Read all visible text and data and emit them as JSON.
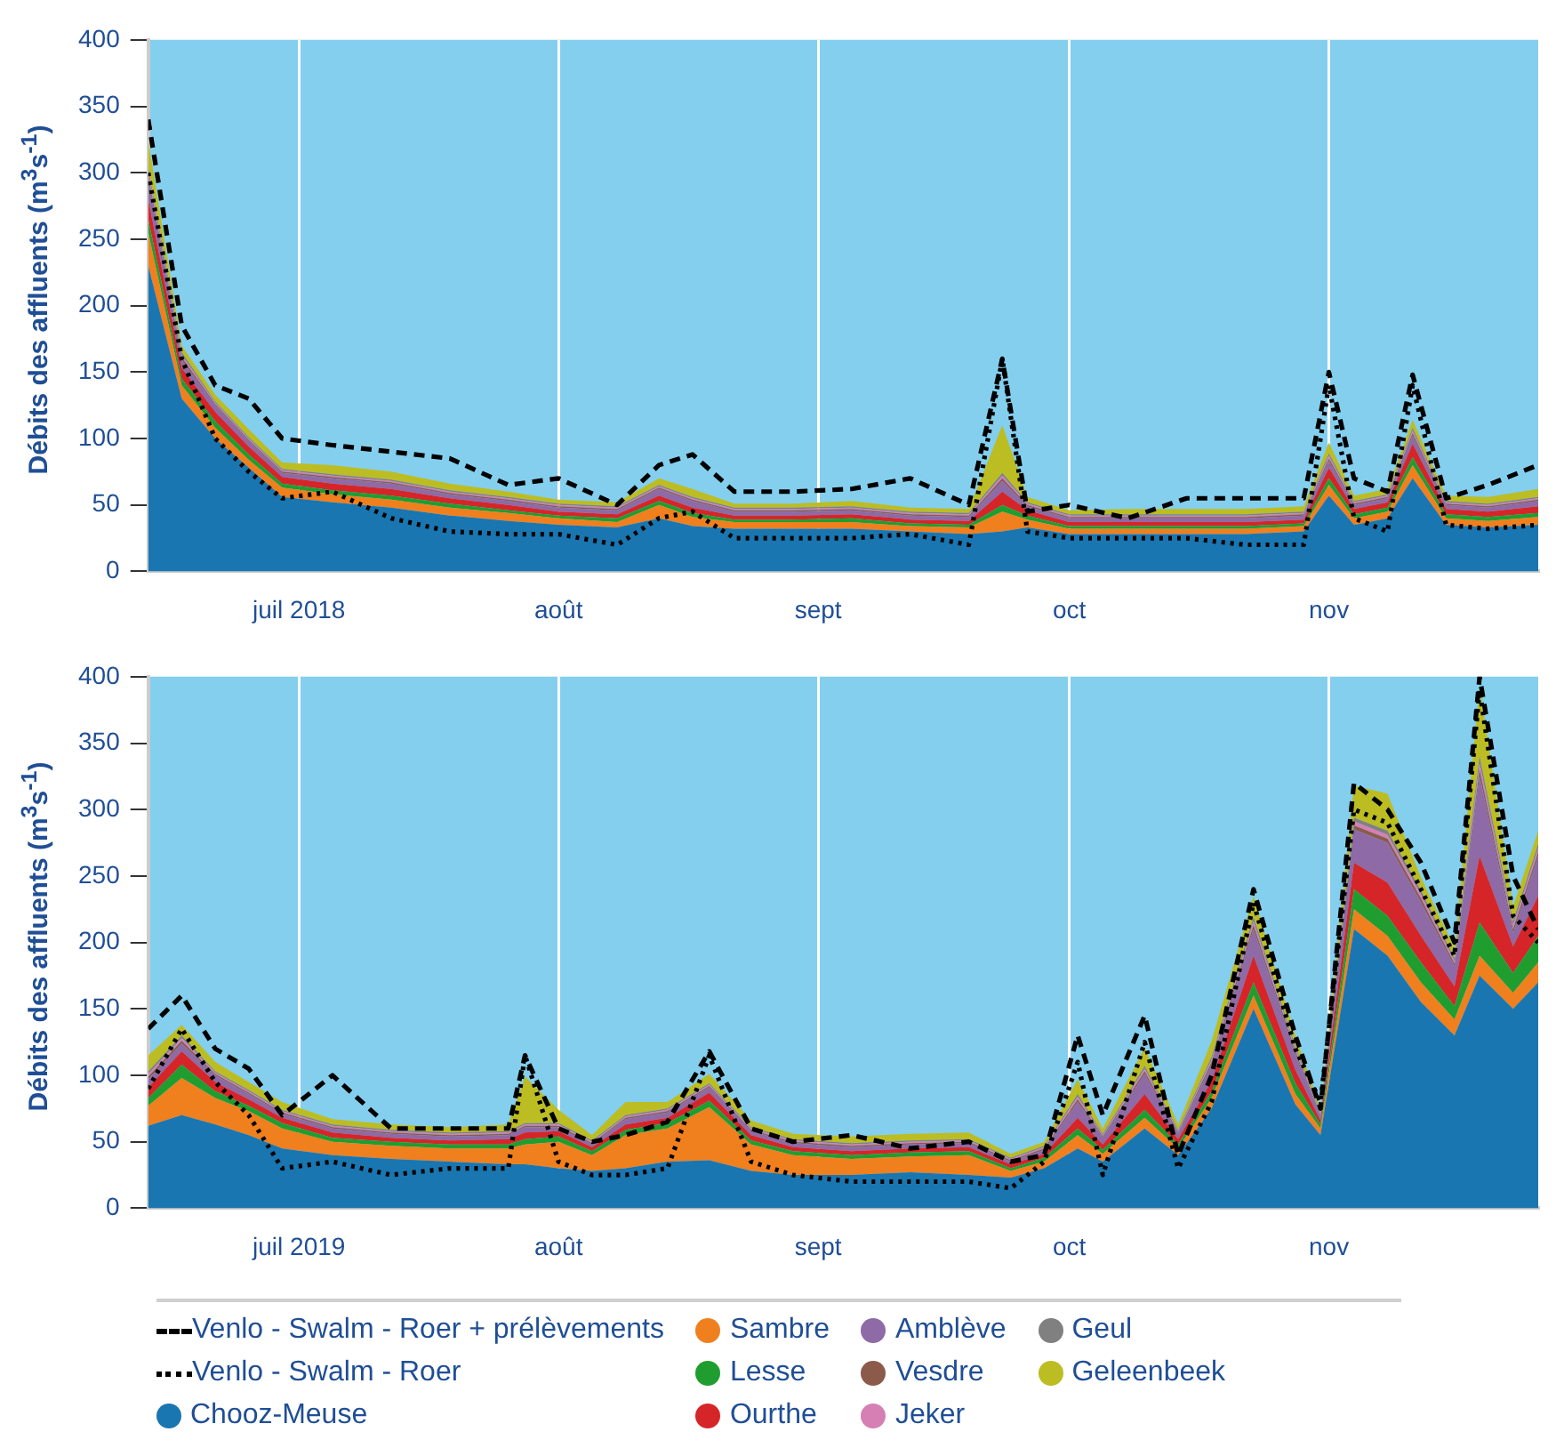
{
  "chart_data": [
    {
      "type": "area",
      "stacked": true,
      "ylabel": "Débits des affluents (m$^{3}$s$^{-1}$)",
      "grid": "x",
      "legend": "bottom",
      "x": [
        "2018-06-13",
        "2018-06-17",
        "2018-06-21",
        "2018-06-25",
        "2018-06-29",
        "2018-07-05",
        "2018-07-12",
        "2018-07-19",
        "2018-07-26",
        "2018-08-01",
        "2018-08-08",
        "2018-08-13",
        "2018-08-17",
        "2018-08-22",
        "2018-08-29",
        "2018-09-05",
        "2018-09-12",
        "2018-09-19",
        "2018-09-23",
        "2018-09-26",
        "2018-10-01",
        "2018-10-08",
        "2018-10-15",
        "2018-10-22",
        "2018-10-29",
        "2018-11-01",
        "2018-11-04",
        "2018-11-08",
        "2018-11-11",
        "2018-11-15",
        "2018-11-20",
        "2018-11-26"
      ],
      "xlim": [
        "2018-06-13",
        "2018-11-26"
      ],
      "xticks": [
        {
          "value": "2018-07-01",
          "label": "juil 2018"
        },
        {
          "value": "2018-08-01",
          "label": "août"
        },
        {
          "value": "2018-09-01",
          "label": "sept"
        },
        {
          "value": "2018-10-01",
          "label": "oct"
        },
        {
          "value": "2018-11-01",
          "label": "nov"
        }
      ],
      "ylim": [
        0,
        400
      ],
      "yticks": [
        0,
        50,
        100,
        150,
        200,
        250,
        300,
        350,
        400
      ],
      "series": [
        {
          "name": "Venlo - Swalm - Roer + prélèvements",
          "type": "line",
          "line_style": "dashed",
          "color": "#000000",
          "values": [
            340,
            185,
            140,
            130,
            100,
            95,
            90,
            85,
            65,
            70,
            50,
            80,
            88,
            60,
            60,
            62,
            70,
            50,
            160,
            45,
            50,
            40,
            55,
            55,
            55,
            150,
            70,
            60,
            148,
            55,
            65,
            80
          ]
        },
        {
          "name": "Venlo - Swalm - Roer",
          "type": "line",
          "line_style": "dotted",
          "color": "#000000",
          "values": [
            300,
            160,
            100,
            75,
            55,
            60,
            40,
            30,
            28,
            28,
            20,
            40,
            45,
            25,
            25,
            25,
            28,
            20,
            160,
            30,
            25,
            25,
            25,
            20,
            20,
            140,
            40,
            30,
            140,
            35,
            32,
            35
          ]
        },
        {
          "name": "Chooz-Meuse",
          "color": "#1a76b0",
          "values": [
            230,
            130,
            100,
            78,
            56,
            52,
            48,
            42,
            38,
            35,
            33,
            40,
            34,
            32,
            32,
            32,
            30,
            28,
            30,
            33,
            28,
            28,
            28,
            28,
            30,
            57,
            35,
            40,
            70,
            35,
            33,
            35
          ]
        },
        {
          "name": "Sambre",
          "color": "#f07f1e",
          "values": [
            25,
            10,
            8,
            6,
            7,
            6,
            6,
            6,
            6,
            5,
            4,
            10,
            7,
            5,
            5,
            5,
            4,
            5,
            15,
            6,
            4,
            4,
            4,
            4,
            4,
            8,
            5,
            5,
            10,
            5,
            5,
            6
          ]
        },
        {
          "name": "Lesse",
          "color": "#1f9e2f",
          "values": [
            10,
            5,
            5,
            4,
            3,
            3,
            3,
            3,
            2,
            2,
            3,
            3,
            3,
            2,
            2,
            3,
            2,
            2,
            5,
            3,
            2,
            2,
            2,
            2,
            2,
            5,
            3,
            3,
            6,
            3,
            3,
            3
          ]
        },
        {
          "name": "Ourthe",
          "color": "#d62528",
          "values": [
            15,
            8,
            7,
            6,
            5,
            5,
            5,
            4,
            4,
            3,
            3,
            4,
            4,
            3,
            3,
            3,
            3,
            3,
            10,
            4,
            3,
            3,
            3,
            3,
            3,
            8,
            4,
            4,
            10,
            4,
            4,
            5
          ]
        },
        {
          "name": "Amblève",
          "color": "#8e6aa6",
          "values": [
            15,
            6,
            5,
            4,
            3,
            4,
            4,
            3,
            3,
            3,
            3,
            5,
            5,
            3,
            3,
            3,
            3,
            3,
            8,
            3,
            3,
            3,
            3,
            3,
            3,
            5,
            3,
            3,
            6,
            3,
            3,
            4
          ]
        },
        {
          "name": "Vesdre",
          "color": "#8b5a4a",
          "values": [
            3,
            2,
            1,
            1,
            1,
            1,
            1,
            1,
            1,
            1,
            1,
            1,
            1,
            1,
            1,
            1,
            1,
            1,
            2,
            1,
            1,
            1,
            1,
            1,
            1,
            2,
            1,
            1,
            2,
            1,
            1,
            1
          ]
        },
        {
          "name": "Jeker",
          "color": "#d67fb4",
          "values": [
            3,
            2,
            1,
            1,
            1,
            1,
            1,
            1,
            1,
            1,
            1,
            1,
            1,
            1,
            1,
            1,
            1,
            1,
            2,
            1,
            1,
            1,
            1,
            1,
            1,
            2,
            1,
            1,
            2,
            1,
            1,
            1
          ]
        },
        {
          "name": "Geul",
          "color": "#808080",
          "values": [
            3,
            2,
            1,
            1,
            1,
            1,
            1,
            1,
            1,
            1,
            1,
            1,
            1,
            1,
            1,
            1,
            1,
            1,
            2,
            1,
            1,
            1,
            1,
            1,
            1,
            2,
            1,
            1,
            2,
            1,
            1,
            1
          ]
        },
        {
          "name": "Geleenbeek",
          "color": "#bcbd22",
          "values": [
            20,
            5,
            5,
            6,
            5,
            7,
            6,
            5,
            4,
            3,
            3,
            5,
            6,
            3,
            3,
            4,
            3,
            3,
            36,
            4,
            3,
            4,
            4,
            4,
            4,
            8,
            4,
            4,
            6,
            4,
            5,
            6
          ]
        }
      ]
    },
    {
      "type": "area",
      "stacked": true,
      "ylabel": "Débits des affluents (m$^{3}$s$^{-1}$)",
      "grid": "x",
      "x": [
        "2019-06-13",
        "2019-06-17",
        "2019-06-21",
        "2019-06-25",
        "2019-06-29",
        "2019-07-05",
        "2019-07-12",
        "2019-07-19",
        "2019-07-26",
        "2019-07-28",
        "2019-08-01",
        "2019-08-05",
        "2019-08-09",
        "2019-08-14",
        "2019-08-19",
        "2019-08-24",
        "2019-08-29",
        "2019-09-05",
        "2019-09-12",
        "2019-09-19",
        "2019-09-24",
        "2019-09-28",
        "2019-10-02",
        "2019-10-05",
        "2019-10-10",
        "2019-10-14",
        "2019-10-18",
        "2019-10-23",
        "2019-10-28",
        "2019-10-31",
        "2019-11-04",
        "2019-11-08",
        "2019-11-12",
        "2019-11-16",
        "2019-11-19",
        "2019-11-23",
        "2019-11-26"
      ],
      "xlim": [
        "2019-06-13",
        "2019-11-26"
      ],
      "xticks": [
        {
          "value": "2019-07-01",
          "label": "juil 2019"
        },
        {
          "value": "2019-08-01",
          "label": "août"
        },
        {
          "value": "2019-09-01",
          "label": "sept"
        },
        {
          "value": "2019-10-01",
          "label": "oct"
        },
        {
          "value": "2019-11-01",
          "label": "nov"
        }
      ],
      "ylim": [
        0,
        400
      ],
      "yticks": [
        0,
        50,
        100,
        150,
        200,
        250,
        300,
        350,
        400
      ],
      "series": [
        {
          "type": "line",
          "line_style": "dashed",
          "color": "#000000",
          "values": [
            135,
            160,
            120,
            105,
            70,
            100,
            60,
            60,
            60,
            115,
            60,
            50,
            55,
            65,
            118,
            60,
            50,
            55,
            45,
            50,
            35,
            40,
            130,
            70,
            145,
            40,
            100,
            240,
            130,
            75,
            320,
            300,
            260,
            200,
            400,
            250,
            210
          ]
        },
        {
          "type": "line",
          "line_style": "dotted",
          "color": "#000000",
          "values": [
            90,
            135,
            95,
            70,
            30,
            35,
            25,
            30,
            30,
            115,
            35,
            25,
            25,
            30,
            115,
            35,
            25,
            20,
            20,
            20,
            15,
            35,
            110,
            25,
            125,
            30,
            80,
            230,
            120,
            80,
            300,
            290,
            240,
            190,
            390,
            220,
            200
          ]
        },
        {
          "color": "#1a76b0",
          "values": [
            62,
            70,
            63,
            55,
            45,
            40,
            37,
            35,
            33,
            33,
            30,
            28,
            30,
            35,
            36,
            28,
            25,
            25,
            27,
            25,
            23,
            30,
            45,
            35,
            60,
            40,
            75,
            150,
            78,
            55,
            210,
            190,
            155,
            130,
            175,
            150,
            170
          ]
        },
        {
          "color": "#f07f1e",
          "values": [
            15,
            28,
            20,
            18,
            15,
            10,
            10,
            10,
            12,
            15,
            20,
            12,
            25,
            25,
            40,
            20,
            15,
            12,
            12,
            15,
            5,
            5,
            10,
            6,
            8,
            5,
            8,
            10,
            8,
            5,
            15,
            15,
            15,
            12,
            15,
            12,
            15
          ]
        },
        {
          "color": "#1f9e2f",
          "values": [
            6,
            10,
            5,
            4,
            4,
            3,
            3,
            3,
            3,
            4,
            4,
            3,
            4,
            4,
            5,
            3,
            3,
            3,
            3,
            3,
            2,
            3,
            5,
            3,
            6,
            3,
            5,
            10,
            8,
            3,
            15,
            15,
            15,
            10,
            25,
            15,
            20
          ]
        },
        {
          "color": "#d62528",
          "values": [
            8,
            10,
            7,
            5,
            4,
            4,
            3,
            3,
            4,
            5,
            4,
            3,
            4,
            4,
            6,
            4,
            3,
            3,
            3,
            3,
            3,
            3,
            8,
            4,
            12,
            4,
            8,
            20,
            10,
            3,
            20,
            25,
            20,
            15,
            50,
            20,
            30
          ]
        },
        {
          "color": "#8e6aa6",
          "values": [
            6,
            6,
            5,
            4,
            3,
            3,
            3,
            3,
            3,
            4,
            3,
            2,
            4,
            4,
            4,
            3,
            3,
            3,
            3,
            3,
            2,
            3,
            12,
            5,
            15,
            4,
            12,
            20,
            12,
            3,
            25,
            30,
            25,
            15,
            60,
            10,
            30
          ]
        },
        {
          "color": "#8b5a4a",
          "values": [
            2,
            2,
            1,
            1,
            1,
            1,
            1,
            1,
            1,
            1,
            1,
            1,
            1,
            1,
            1,
            1,
            1,
            1,
            1,
            1,
            1,
            1,
            2,
            1,
            2,
            1,
            2,
            3,
            2,
            1,
            3,
            3,
            3,
            2,
            5,
            3,
            3
          ]
        },
        {
          "color": "#d67fb4",
          "values": [
            2,
            2,
            1,
            1,
            1,
            1,
            1,
            1,
            1,
            1,
            1,
            1,
            1,
            1,
            1,
            1,
            1,
            1,
            1,
            1,
            1,
            1,
            2,
            1,
            2,
            1,
            2,
            3,
            2,
            1,
            3,
            3,
            3,
            2,
            5,
            3,
            3
          ]
        },
        {
          "color": "#808080",
          "values": [
            2,
            2,
            1,
            1,
            1,
            1,
            1,
            1,
            1,
            1,
            1,
            1,
            1,
            1,
            1,
            1,
            1,
            1,
            1,
            1,
            1,
            1,
            2,
            1,
            2,
            1,
            2,
            3,
            2,
            1,
            3,
            3,
            3,
            2,
            5,
            3,
            3
          ]
        },
        {
          "color": "#bcbd22",
          "values": [
            12,
            8,
            7,
            6,
            6,
            4,
            4,
            4,
            5,
            35,
            10,
            4,
            10,
            5,
            7,
            5,
            4,
            5,
            5,
            5,
            3,
            3,
            11,
            4,
            14,
            4,
            12,
            16,
            8,
            3,
            24,
            28,
            10,
            8,
            53,
            11,
            10
          ]
        }
      ]
    }
  ]
}
